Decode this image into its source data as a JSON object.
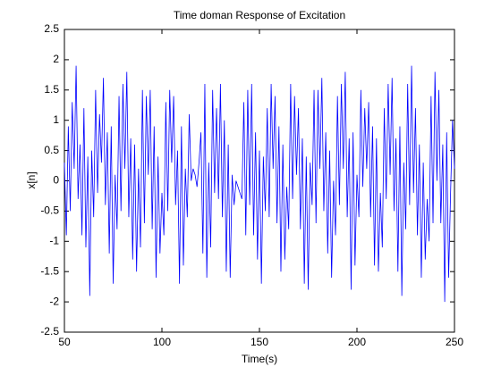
{
  "chart_data": {
    "type": "line",
    "title": "Time doman Response of Excitation",
    "xlabel": "Time(s)",
    "ylabel": "x[n]",
    "color": "#0000ff",
    "xlim": [
      50,
      250
    ],
    "xticks": [
      50,
      100,
      150,
      200,
      250
    ],
    "ylim": [
      -2.5,
      2.5
    ],
    "yticks": [
      -2.5,
      -2,
      -1.5,
      -1,
      -0.5,
      0,
      0.5,
      1,
      1.5,
      2,
      2.5
    ],
    "grid": false,
    "x": [
      50,
      51,
      52,
      53,
      54,
      55,
      56,
      57,
      58,
      59,
      60,
      61,
      62,
      63,
      64,
      65,
      66,
      67,
      68,
      69,
      70,
      71,
      72,
      73,
      74,
      75,
      76,
      77,
      78,
      79,
      80,
      81,
      82,
      83,
      84,
      85,
      86,
      87,
      88,
      89,
      90,
      91,
      92,
      93,
      94,
      95,
      96,
      97,
      98,
      99,
      100,
      101,
      102,
      103,
      104,
      105,
      106,
      107,
      108,
      109,
      110,
      111,
      112,
      113,
      114,
      115,
      116,
      117,
      118,
      119,
      120,
      121,
      122,
      123,
      124,
      125,
      126,
      127,
      128,
      129,
      130,
      131,
      132,
      133,
      134,
      135,
      136,
      137,
      138,
      139,
      140,
      141,
      142,
      143,
      144,
      145,
      146,
      147,
      148,
      149,
      150,
      151,
      152,
      153,
      154,
      155,
      156,
      157,
      158,
      159,
      160,
      161,
      162,
      163,
      164,
      165,
      166,
      167,
      168,
      169,
      170,
      171,
      172,
      173,
      174,
      175,
      176,
      177,
      178,
      179,
      180,
      181,
      182,
      183,
      184,
      185,
      186,
      187,
      188,
      189,
      190,
      191,
      192,
      193,
      194,
      195,
      196,
      197,
      198,
      199,
      200,
      201,
      202,
      203,
      204,
      205,
      206,
      207,
      208,
      209,
      210,
      211,
      212,
      213,
      214,
      215,
      216,
      217,
      218,
      219,
      220,
      221,
      222,
      223,
      224,
      225,
      226,
      227,
      228,
      229,
      230,
      231,
      232,
      233,
      234,
      235,
      236,
      237,
      238,
      239,
      240,
      241,
      242,
      243,
      244,
      245,
      246,
      247,
      248,
      249,
      250
    ],
    "values": [
      0.3,
      -0.9,
      0.9,
      -0.5,
      1.3,
      0.2,
      1.9,
      -0.3,
      0.6,
      -0.9,
      1.2,
      -1.1,
      0.4,
      -1.9,
      0.5,
      -0.6,
      1.5,
      -0.2,
      1.1,
      0.3,
      1.7,
      -0.4,
      0.8,
      -1.2,
      0.9,
      -1.7,
      0.1,
      -0.8,
      1.4,
      -0.5,
      1.6,
      0.2,
      1.8,
      -0.6,
      0.7,
      -1.3,
      0.6,
      -1.5,
      0.2,
      -1.1,
      1.5,
      -0.7,
      1.4,
      0.1,
      1.5,
      -0.8,
      0.9,
      -1.6,
      0.4,
      -1.2,
      -0.2,
      -0.9,
      1.3,
      -0.5,
      1.5,
      0.3,
      1.4,
      -0.4,
      0.5,
      -1.7,
      0.9,
      -1.4,
      0.2,
      -0.6,
      1.1,
      0.0,
      0.2,
      0.1,
      -0.1,
      0.3,
      0.8,
      -1.2,
      1.6,
      -1.6,
      0.3,
      -1.1,
      1.5,
      -0.2,
      1.2,
      -0.3,
      1.6,
      -0.6,
      1.0,
      -1.5,
      0.6,
      -1.6,
      0.1,
      -0.4,
      0.0,
      -0.1,
      -0.2,
      -0.3,
      1.3,
      -0.9,
      1.5,
      -0.4,
      1.6,
      -0.9,
      0.8,
      -1.3,
      0.5,
      -1.7,
      0.4,
      -0.5,
      1.2,
      -0.6,
      1.6,
      0.2,
      1.4,
      -0.7,
      0.9,
      -1.5,
      0.6,
      -1.3,
      -0.1,
      -0.8,
      1.6,
      -0.3,
      1.4,
      0.1,
      1.2,
      -0.8,
      0.7,
      -1.7,
      0.4,
      -1.8,
      0.3,
      -0.4,
      1.5,
      -0.7,
      1.5,
      0.2,
      1.7,
      -0.5,
      0.8,
      -1.2,
      0.5,
      -1.6,
      0.0,
      -0.9,
      1.4,
      -0.4,
      1.6,
      0.2,
      1.8,
      -0.6,
      0.7,
      -1.8,
      0.8,
      -1.4,
      0.1,
      -0.6,
      1.5,
      -0.1,
      1.2,
      0.2,
      1.3,
      -0.6,
      0.9,
      -1.4,
      0.7,
      -1.5,
      -0.2,
      -1.1,
      1.2,
      -0.3,
      1.6,
      0.1,
      1.7,
      -0.5,
      0.7,
      -1.5,
      0.9,
      -1.9,
      0.3,
      -0.8,
      1.6,
      -0.4,
      1.9,
      -0.2,
      1.2,
      -0.9,
      0.6,
      -1.6,
      0.3,
      -1.3,
      -0.3,
      -1.0,
      1.4,
      -0.7,
      1.8,
      0.0,
      1.5,
      -0.7,
      0.6,
      -2.0,
      0.8,
      -1.6,
      -0.2,
      1.0,
      0.2
    ]
  }
}
